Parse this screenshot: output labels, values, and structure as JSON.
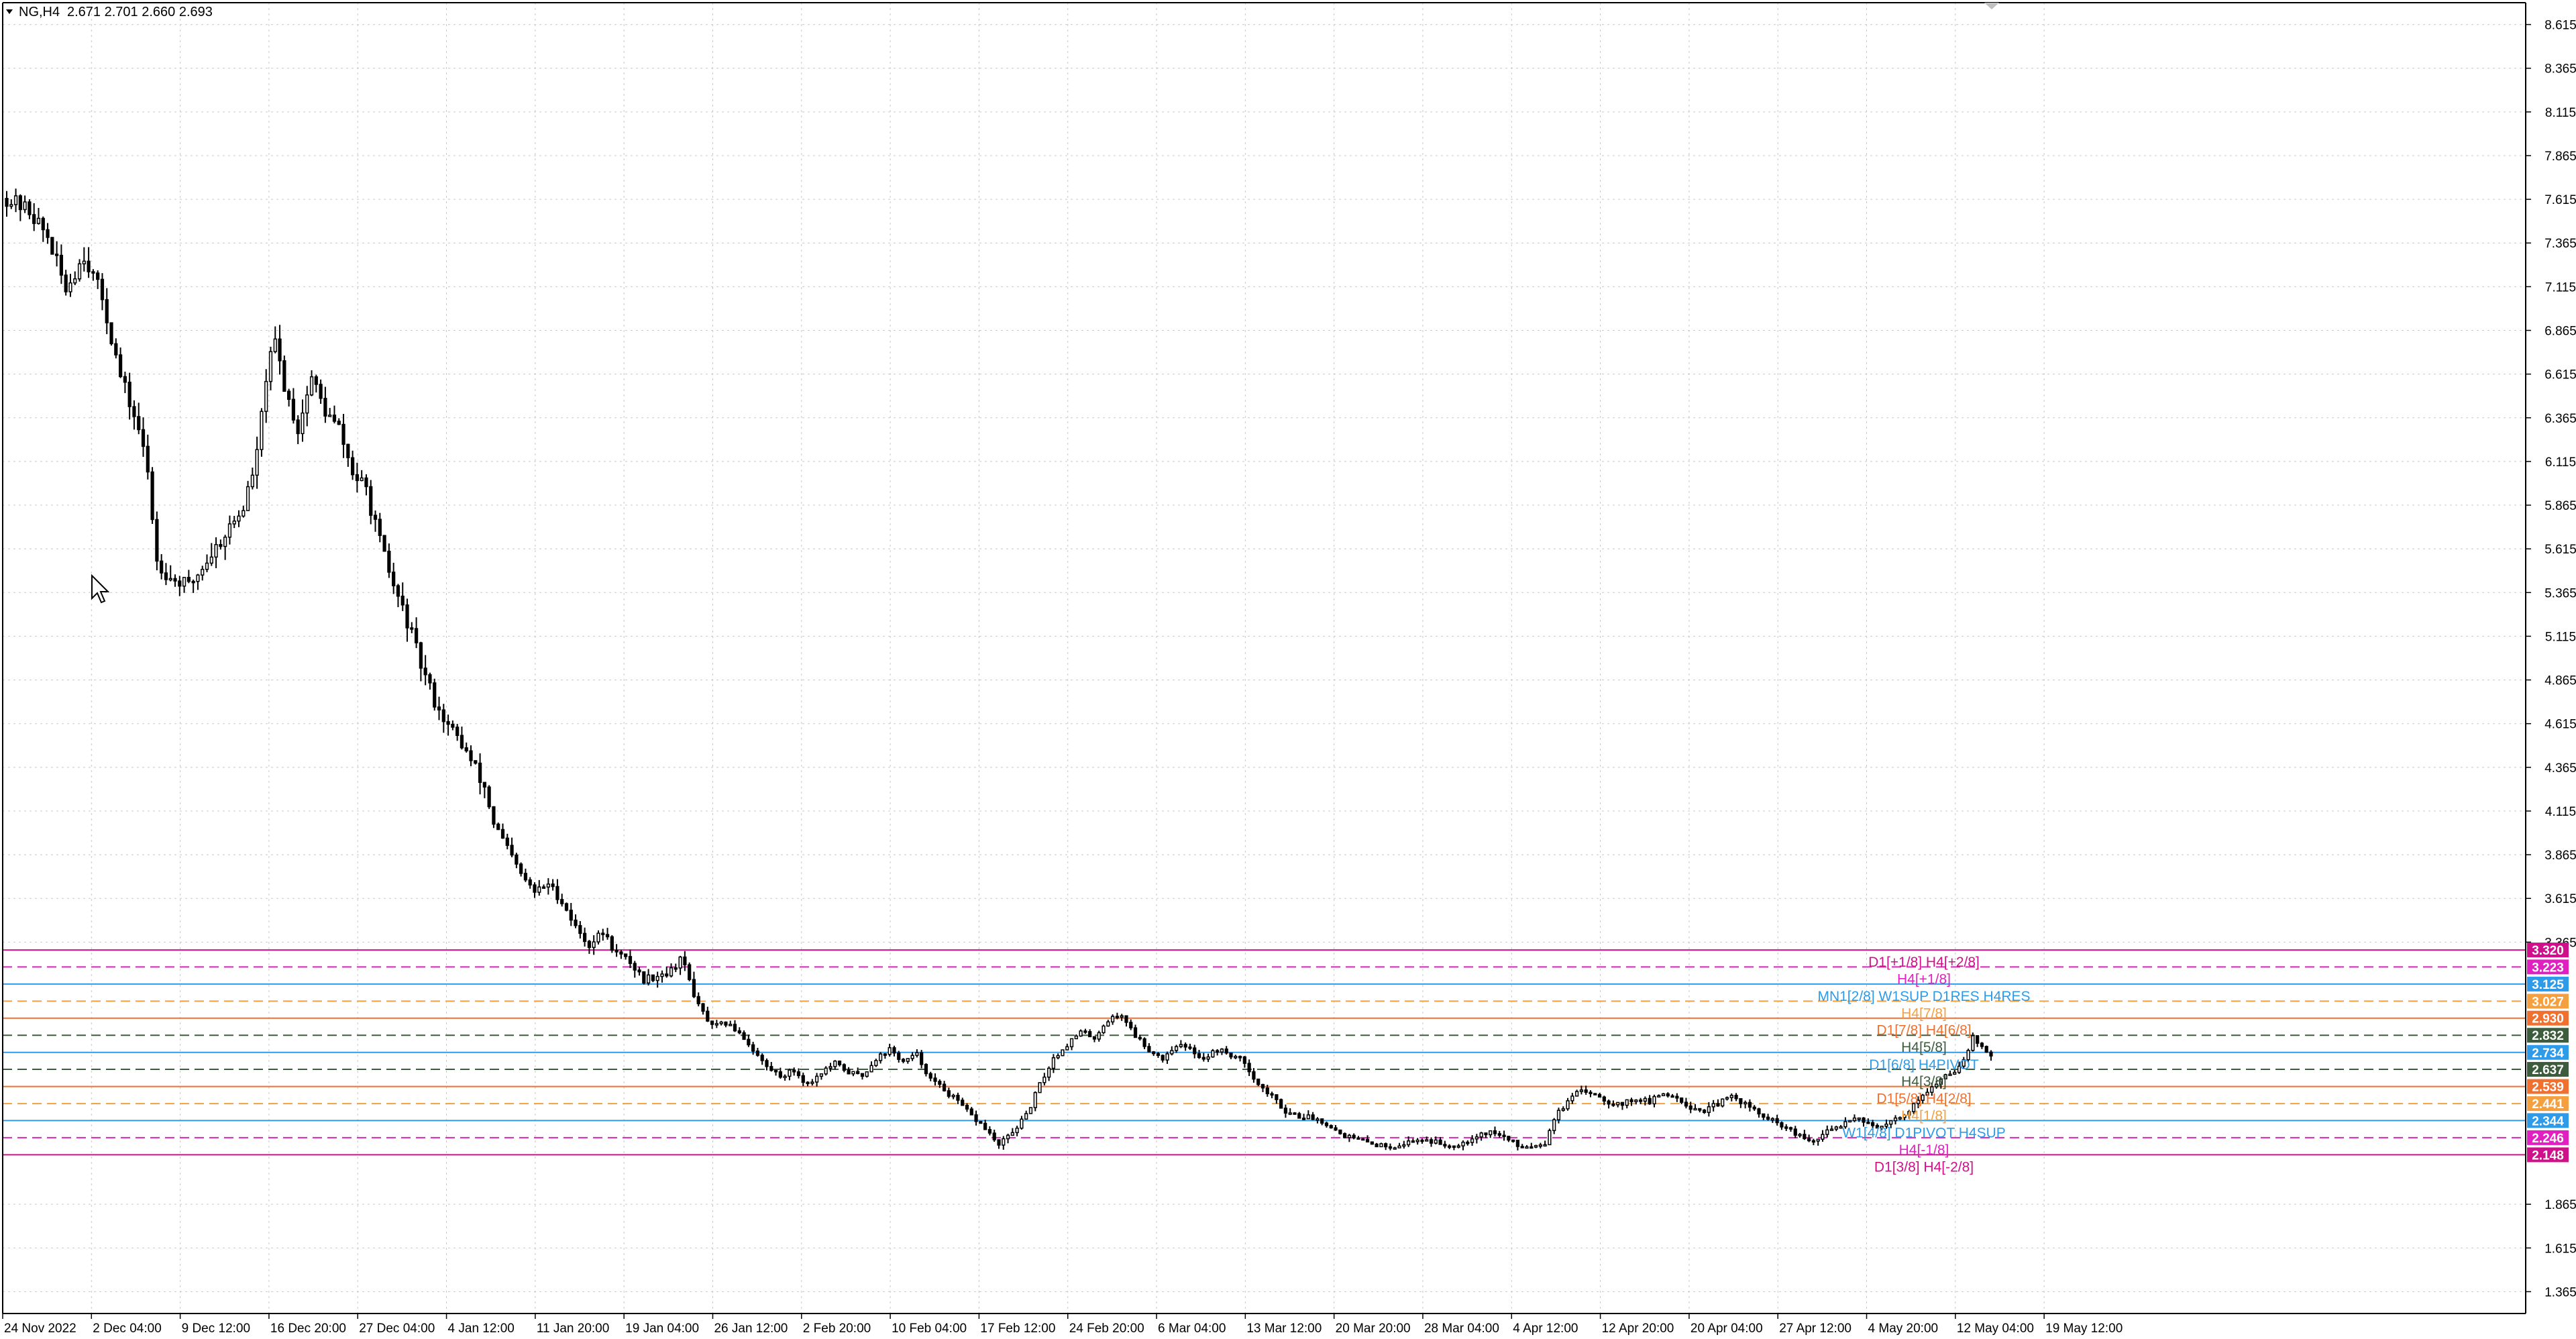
{
  "header": {
    "symbol": "NG,H4",
    "ohlc": "2.671 2.701 2.660 2.693"
  },
  "colors": {
    "background": "#ffffff",
    "grid": "#c8c8c8",
    "candle": "#000000",
    "pink": "#e020c0",
    "magenta": "#d0108a",
    "blue": "#2f9be8",
    "orange": "#f07030",
    "gray": "#808080",
    "darkgreen": "#3d5c3d",
    "light_orange": "#f4a040"
  },
  "chart_data": {
    "type": "candlestick",
    "timeframe": "H4",
    "symbol": "NG",
    "y_range": [
      1.24,
      8.74
    ],
    "x_tick_labels": [
      "24 Nov 2022",
      "2 Dec 04:00",
      "9 Dec 12:00",
      "16 Dec 20:00",
      "27 Dec 04:00",
      "4 Jan 12:00",
      "11 Jan 20:00",
      "19 Jan 04:00",
      "26 Jan 12:00",
      "2 Feb 20:00",
      "10 Feb 04:00",
      "17 Feb 12:00",
      "24 Feb 20:00",
      "6 Mar 04:00",
      "13 Mar 12:00",
      "20 Mar 20:00",
      "28 Mar 04:00",
      "4 Apr 12:00",
      "12 Apr 20:00",
      "20 Apr 04:00",
      "27 Apr 12:00",
      "4 May 20:00",
      "12 May 04:00",
      "19 May 12:00"
    ],
    "y_tick_labels": [
      "8.615",
      "8.365",
      "8.115",
      "7.865",
      "7.615",
      "7.365",
      "7.115",
      "6.865",
      "6.615",
      "6.365",
      "6.115",
      "5.865",
      "5.615",
      "5.365",
      "5.115",
      "4.865",
      "4.615",
      "4.365",
      "4.115",
      "3.865",
      "3.615",
      "3.365",
      "1.865",
      "1.615",
      "1.365"
    ],
    "y_tick_values": [
      8.615,
      8.365,
      8.115,
      7.865,
      7.615,
      7.365,
      7.115,
      6.865,
      6.615,
      6.365,
      6.115,
      5.865,
      5.615,
      5.365,
      5.115,
      4.865,
      4.615,
      4.365,
      4.115,
      3.865,
      3.615,
      3.365,
      1.865,
      1.615,
      1.365
    ],
    "price_path": [
      [
        0,
        7.62
      ],
      [
        5,
        7.55
      ],
      [
        9,
        7.4
      ],
      [
        13,
        7.1
      ],
      [
        17,
        7.3
      ],
      [
        21,
        7.05
      ],
      [
        25,
        6.6
      ],
      [
        29,
        6.3
      ],
      [
        31,
        6.05
      ],
      [
        33,
        5.55
      ],
      [
        36,
        5.45
      ],
      [
        40,
        5.4
      ],
      [
        44,
        5.55
      ],
      [
        48,
        5.7
      ],
      [
        52,
        5.85
      ],
      [
        55,
        6.15
      ],
      [
        57,
        6.6
      ],
      [
        59,
        6.8
      ],
      [
        61,
        6.55
      ],
      [
        64,
        6.3
      ],
      [
        67,
        6.6
      ],
      [
        70,
        6.4
      ],
      [
        73,
        6.3
      ],
      [
        76,
        6.05
      ],
      [
        79,
        5.95
      ],
      [
        82,
        5.65
      ],
      [
        85,
        5.4
      ],
      [
        88,
        5.2
      ],
      [
        91,
        4.95
      ],
      [
        94,
        4.75
      ],
      [
        97,
        4.6
      ],
      [
        100,
        4.5
      ],
      [
        103,
        4.35
      ],
      [
        105,
        4.25
      ],
      [
        107,
        4.05
      ],
      [
        110,
        3.9
      ],
      [
        113,
        3.75
      ],
      [
        116,
        3.65
      ],
      [
        119,
        3.7
      ],
      [
        122,
        3.6
      ],
      [
        125,
        3.45
      ],
      [
        128,
        3.35
      ],
      [
        131,
        3.42
      ],
      [
        134,
        3.3
      ],
      [
        137,
        3.25
      ],
      [
        140,
        3.15
      ],
      [
        143,
        3.18
      ],
      [
        146,
        3.2
      ],
      [
        148,
        3.28
      ],
      [
        150,
        3.15
      ],
      [
        152,
        3.0
      ],
      [
        155,
        2.88
      ],
      [
        158,
        2.9
      ],
      [
        161,
        2.85
      ],
      [
        164,
        2.75
      ],
      [
        167,
        2.65
      ],
      [
        170,
        2.6
      ],
      [
        173,
        2.63
      ],
      [
        176,
        2.55
      ],
      [
        179,
        2.62
      ],
      [
        182,
        2.67
      ],
      [
        185,
        2.62
      ],
      [
        188,
        2.6
      ],
      [
        191,
        2.7
      ],
      [
        194,
        2.75
      ],
      [
        197,
        2.68
      ],
      [
        200,
        2.72
      ],
      [
        203,
        2.58
      ],
      [
        206,
        2.52
      ],
      [
        209,
        2.45
      ],
      [
        212,
        2.37
      ],
      [
        215,
        2.3
      ],
      [
        218,
        2.2
      ],
      [
        221,
        2.28
      ],
      [
        224,
        2.37
      ],
      [
        227,
        2.55
      ],
      [
        230,
        2.7
      ],
      [
        233,
        2.78
      ],
      [
        236,
        2.85
      ],
      [
        239,
        2.82
      ],
      [
        242,
        2.92
      ],
      [
        245,
        2.95
      ],
      [
        248,
        2.83
      ],
      [
        251,
        2.75
      ],
      [
        254,
        2.7
      ],
      [
        257,
        2.78
      ],
      [
        260,
        2.75
      ],
      [
        263,
        2.7
      ],
      [
        266,
        2.75
      ],
      [
        269,
        2.72
      ],
      [
        272,
        2.68
      ],
      [
        275,
        2.55
      ],
      [
        278,
        2.48
      ],
      [
        281,
        2.4
      ],
      [
        284,
        2.37
      ],
      [
        287,
        2.36
      ],
      [
        290,
        2.33
      ],
      [
        293,
        2.27
      ],
      [
        296,
        2.24
      ],
      [
        299,
        2.22
      ],
      [
        302,
        2.2
      ],
      [
        305,
        2.2
      ],
      [
        308,
        2.22
      ],
      [
        311,
        2.24
      ],
      [
        314,
        2.22
      ],
      [
        317,
        2.2
      ],
      [
        320,
        2.22
      ],
      [
        323,
        2.26
      ],
      [
        326,
        2.28
      ],
      [
        329,
        2.25
      ],
      [
        332,
        2.2
      ],
      [
        335,
        2.2
      ],
      [
        338,
        2.22
      ],
      [
        340,
        2.36
      ],
      [
        343,
        2.45
      ],
      [
        346,
        2.52
      ],
      [
        349,
        2.5
      ],
      [
        352,
        2.45
      ],
      [
        355,
        2.44
      ],
      [
        358,
        2.47
      ],
      [
        361,
        2.45
      ],
      [
        364,
        2.5
      ],
      [
        367,
        2.48
      ],
      [
        370,
        2.42
      ],
      [
        373,
        2.4
      ],
      [
        376,
        2.44
      ],
      [
        379,
        2.48
      ],
      [
        382,
        2.44
      ],
      [
        385,
        2.38
      ],
      [
        388,
        2.34
      ],
      [
        391,
        2.3
      ],
      [
        394,
        2.25
      ],
      [
        397,
        2.22
      ],
      [
        400,
        2.28
      ],
      [
        403,
        2.32
      ],
      [
        406,
        2.37
      ],
      [
        409,
        2.33
      ],
      [
        412,
        2.3
      ],
      [
        415,
        2.35
      ],
      [
        418,
        2.4
      ],
      [
        421,
        2.5
      ],
      [
        424,
        2.55
      ],
      [
        426,
        2.6
      ],
      [
        428,
        2.63
      ],
      [
        430,
        2.7
      ],
      [
        432,
        2.82
      ],
      [
        434,
        2.76
      ],
      [
        436,
        2.72
      ]
    ],
    "levels": [
      {
        "price": 3.32,
        "label": "D1[+1/8] H4[+2/8]",
        "badge": "3.320",
        "color": "#d0108a",
        "style": "solid"
      },
      {
        "price": 3.223,
        "label": "H4[+1/8]",
        "badge": "3.223",
        "color": "#e020c0",
        "style": "dashed"
      },
      {
        "price": 3.125,
        "label": "MN1[2/8] W1SUP D1RES H4RES",
        "badge": "3.125",
        "color": "#2f9be8",
        "style": "solid"
      },
      {
        "price": 3.027,
        "label": "H4[7/8]",
        "badge": "3.027",
        "color": "#f4a040",
        "style": "dashed"
      },
      {
        "price": 2.93,
        "label": "D1[7/8] H4[6/8]",
        "badge": "2.930",
        "color": "#f07030",
        "style": "solid"
      },
      {
        "price": 2.832,
        "label": "H4[5/8]",
        "badge": "2.832",
        "color": "#3d5c3d",
        "style": "dashed"
      },
      {
        "price": 2.734,
        "label": "D1[6/8] H4PIVOT",
        "badge": "2.734",
        "color": "#2f9be8",
        "style": "solid"
      },
      {
        "price": 2.637,
        "label": "H4[3/8]",
        "badge": "2.637",
        "color": "#3d5c3d",
        "style": "dashed"
      },
      {
        "price": 2.539,
        "label": "D1[5/8] H4[2/8]",
        "badge": "2.539",
        "color": "#f07030",
        "style": "solid"
      },
      {
        "price": 2.441,
        "label": "H4[1/8]",
        "badge": "2.441",
        "color": "#f4a040",
        "style": "dashed"
      },
      {
        "price": 2.344,
        "label": "W1[4/8] D1PIVOT H4SUP",
        "badge": "2.344",
        "color": "#2f9be8",
        "style": "solid"
      },
      {
        "price": 2.246,
        "label": "H4[-1/8]",
        "badge": "2.246",
        "color": "#e020c0",
        "style": "dashed"
      },
      {
        "price": 2.148,
        "label": "D1[3/8] H4[-2/8]",
        "badge": "2.148",
        "color": "#d0108a",
        "style": "solid"
      }
    ]
  }
}
